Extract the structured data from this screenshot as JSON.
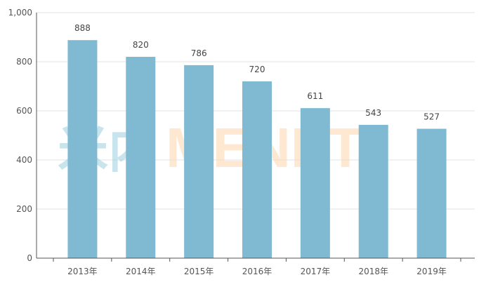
{
  "chart_data": {
    "type": "bar",
    "categories": [
      "2013年",
      "2014年",
      "2015年",
      "2016年",
      "2017年",
      "2018年",
      "2019年"
    ],
    "values": [
      888,
      820,
      786,
      720,
      611,
      543,
      527
    ],
    "data_labels": [
      "888",
      "820",
      "786",
      "720",
      "611",
      "543",
      "527"
    ],
    "y_ticks": [
      0,
      200,
      400,
      600,
      800,
      1000
    ],
    "y_tick_labels": [
      "0",
      "200",
      "400",
      "600",
      "800",
      "1,000"
    ],
    "ylim": [
      0,
      1000
    ],
    "grid": true,
    "bar_color": "#7fbad2",
    "title": "",
    "xlabel": "",
    "ylabel": ""
  },
  "watermark": {
    "cn": "米内",
    "en": "MENET",
    "cn_color": "#9ccfe0",
    "en_color": "#ffd7ad"
  }
}
